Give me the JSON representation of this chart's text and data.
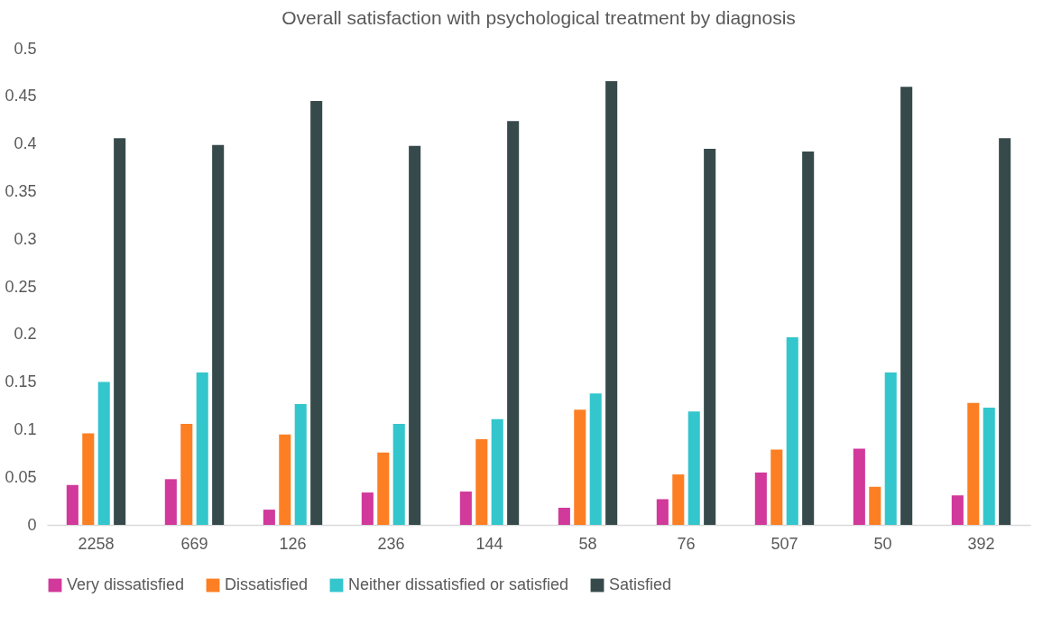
{
  "chart_data": {
    "type": "bar",
    "title": "Overall satisfaction with psychological treatment by diagnosis",
    "categories": [
      "2258",
      "669",
      "126",
      "236",
      "144",
      "58",
      "76",
      "507",
      "50",
      "392"
    ],
    "series": [
      {
        "name": "Very dissatisfied",
        "color": "#d1399b",
        "values": [
          0.042,
          0.048,
          0.016,
          0.034,
          0.035,
          0.018,
          0.027,
          0.055,
          0.08,
          0.031
        ]
      },
      {
        "name": "Dissatisfied",
        "color": "#fd7f23",
        "values": [
          0.096,
          0.106,
          0.095,
          0.076,
          0.09,
          0.121,
          0.053,
          0.079,
          0.04,
          0.128
        ]
      },
      {
        "name": "Neither dissatisfied or satisfied",
        "color": "#33c6cc",
        "values": [
          0.15,
          0.16,
          0.127,
          0.106,
          0.111,
          0.138,
          0.119,
          0.197,
          0.16,
          0.123
        ]
      },
      {
        "name": "Satisfied",
        "color": "#374a4b",
        "values": [
          0.406,
          0.399,
          0.445,
          0.398,
          0.424,
          0.466,
          0.395,
          0.392,
          0.46,
          0.406
        ]
      }
    ],
    "ylim": [
      0,
      0.5
    ],
    "yticks": [
      0,
      0.05,
      0.1,
      0.15,
      0.2,
      0.25,
      0.3,
      0.35,
      0.4,
      0.45,
      0.5
    ],
    "grid": false,
    "legend": "bottom"
  }
}
